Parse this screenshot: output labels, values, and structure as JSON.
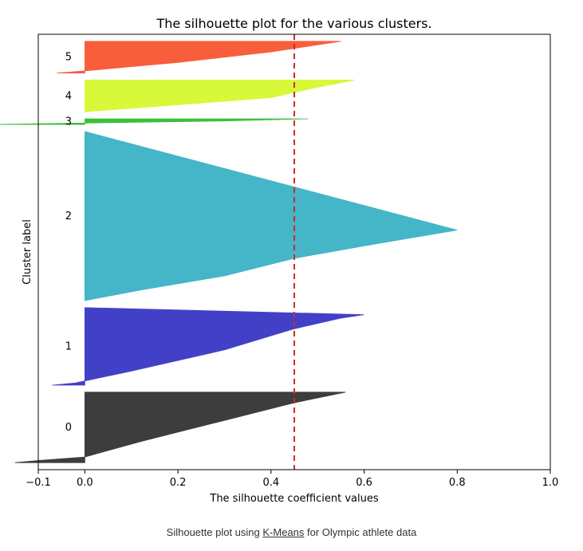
{
  "chart_data": {
    "type": "area",
    "title": "The silhouette plot for the various clusters.",
    "xlabel": "The silhouette coefficient values",
    "ylabel": "Cluster label",
    "xlim": [
      -0.1,
      1.0
    ],
    "x_ticks": [
      {
        "value": -0.1,
        "label": "−0.1"
      },
      {
        "value": 0.0,
        "label": "0.0"
      },
      {
        "value": 0.2,
        "label": "0.2"
      },
      {
        "value": 0.4,
        "label": "0.4"
      },
      {
        "value": 0.6,
        "label": "0.6"
      },
      {
        "value": 0.8,
        "label": "0.8"
      },
      {
        "value": 1.0,
        "label": "1.0"
      }
    ],
    "grid": false,
    "average_silhouette": 0.45,
    "average_line_color": "#d62728",
    "clusters": [
      {
        "label": "0",
        "color": "#3d3d3d",
        "size": 100,
        "profile": [
          [
            0,
            -0.15
          ],
          [
            3,
            -0.1
          ],
          [
            8,
            0.0
          ],
          [
            30,
            0.12
          ],
          [
            60,
            0.3
          ],
          [
            85,
            0.45
          ],
          [
            100,
            0.56
          ]
        ]
      },
      {
        "label": "1",
        "color": "#4340c8",
        "size": 110,
        "profile": [
          [
            0,
            -0.07
          ],
          [
            3,
            -0.02
          ],
          [
            6,
            0.0
          ],
          [
            20,
            0.1
          ],
          [
            50,
            0.3
          ],
          [
            80,
            0.45
          ],
          [
            95,
            0.55
          ],
          [
            100,
            0.6
          ]
        ]
      },
      {
        "label": "2",
        "color": "#45b5c8",
        "size": 240,
        "profile": [
          [
            0,
            0.0
          ],
          [
            15,
            0.12
          ],
          [
            35,
            0.3
          ],
          [
            60,
            0.45
          ],
          [
            80,
            0.62
          ],
          [
            100,
            0.8
          ]
        ]
      },
      {
        "label": "3",
        "color": "#3bc03b",
        "size": 8,
        "profile": [
          [
            0,
            -0.2
          ],
          [
            2,
            0.0
          ],
          [
            5,
            0.3
          ],
          [
            8,
            0.48
          ]
        ]
      },
      {
        "label": "4",
        "color": "#d8f83a",
        "size": 45,
        "profile": [
          [
            0,
            0.0
          ],
          [
            5,
            0.1
          ],
          [
            20,
            0.4
          ],
          [
            35,
            0.5
          ],
          [
            45,
            0.58
          ]
        ]
      },
      {
        "label": "5",
        "color": "#f85e3c",
        "size": 45,
        "profile": [
          [
            0,
            -0.06
          ],
          [
            3,
            0.0
          ],
          [
            15,
            0.2
          ],
          [
            30,
            0.4
          ],
          [
            45,
            0.55
          ]
        ]
      }
    ]
  },
  "caption": {
    "prefix": "Silhouette plot using ",
    "link": "K-Means",
    "suffix": " for Olympic athlete data"
  }
}
